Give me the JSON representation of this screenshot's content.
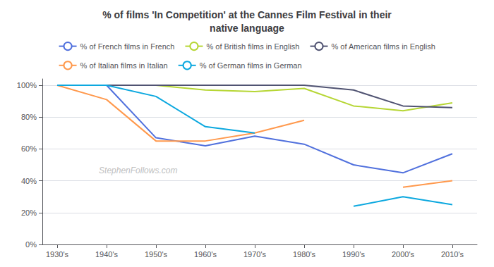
{
  "chart_data": {
    "type": "line",
    "title": "% of films 'In Competition' at the Cannes Film Festival in their\nnative language",
    "x": [
      1930,
      1940,
      1950,
      1960,
      1970,
      1980,
      1990,
      2000,
      2010
    ],
    "series": [
      {
        "name": "% of French films in French",
        "values": [
          1.0,
          1.0,
          0.67,
          0.62,
          0.68,
          0.63,
          0.5,
          0.45,
          0.57
        ]
      },
      {
        "name": "% of British films in English",
        "values": [
          1.0,
          1.0,
          1.0,
          0.97,
          0.96,
          0.98,
          0.87,
          0.84,
          0.89
        ]
      },
      {
        "name": "% of American films in English",
        "values": [
          1.0,
          1.0,
          1.0,
          1.0,
          1.0,
          1.0,
          0.97,
          0.87,
          0.86
        ]
      },
      {
        "name": "% of Italian films in Italian",
        "values": [
          1.0,
          0.91,
          0.65,
          0.65,
          0.7,
          0.78,
          null,
          0.36,
          0.4
        ]
      },
      {
        "name": "% of German films in German",
        "values": [
          1.0,
          1.0,
          0.93,
          0.74,
          0.7,
          null,
          0.24,
          0.3,
          0.25
        ]
      }
    ],
    "xlim": [
      1927,
      2015
    ],
    "xticks": [
      {
        "value": 1930,
        "label": "1930's"
      },
      {
        "value": 1940,
        "label": "1940's"
      },
      {
        "value": 1950,
        "label": "1950's"
      },
      {
        "value": 1960,
        "label": "1960's"
      },
      {
        "value": 1970,
        "label": "1970's"
      },
      {
        "value": 1980,
        "label": "1980's"
      },
      {
        "value": 1990,
        "label": "1990's"
      },
      {
        "value": 2000,
        "label": "2000's"
      },
      {
        "value": 2010,
        "label": "2010's"
      }
    ],
    "ylim": [
      0,
      1.04
    ],
    "yticks": [
      {
        "value": 0,
        "label": "0%"
      },
      {
        "value": 0.2,
        "label": "20%"
      },
      {
        "value": 0.4,
        "label": "40%"
      },
      {
        "value": 0.6,
        "label": "60%"
      },
      {
        "value": 0.8,
        "label": "80%"
      },
      {
        "value": 1.0,
        "label": "100%"
      }
    ],
    "grid": true,
    "legend": "top",
    "annotations": [
      "StephenFollows.com"
    ]
  }
}
